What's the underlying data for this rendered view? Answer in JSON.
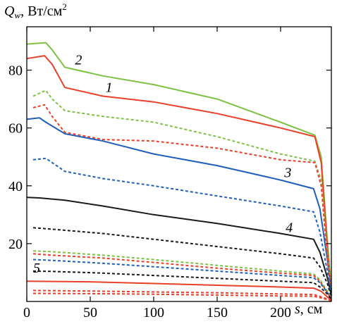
{
  "chart_data": {
    "type": "line",
    "ylabel": {
      "symbol": "Q",
      "subscript": "w",
      "unit": ", Вт/см",
      "power": "2"
    },
    "xlabel": {
      "symbol": "s",
      "unit": ", см"
    },
    "xlim": [
      0,
      240
    ],
    "ylim": [
      0,
      95
    ],
    "x_ticks": [
      0,
      50,
      100,
      150,
      200
    ],
    "y_ticks": [
      20,
      40,
      60,
      80
    ],
    "series": [
      {
        "name": "2",
        "style": "solid",
        "color": "#7dc242",
        "points": [
          [
            0,
            89
          ],
          [
            15,
            89.5
          ],
          [
            20,
            87
          ],
          [
            30,
            81
          ],
          [
            60,
            78
          ],
          [
            100,
            75
          ],
          [
            150,
            70
          ],
          [
            200,
            62
          ],
          [
            227,
            57.5
          ],
          [
            232,
            50
          ],
          [
            237,
            20
          ],
          [
            240,
            4
          ]
        ]
      },
      {
        "name": "1",
        "style": "solid",
        "color": "#e8402a",
        "points": [
          [
            0,
            84
          ],
          [
            14,
            85
          ],
          [
            20,
            82
          ],
          [
            30,
            74
          ],
          [
            60,
            71
          ],
          [
            100,
            69
          ],
          [
            150,
            65
          ],
          [
            200,
            60
          ],
          [
            227,
            57
          ],
          [
            232,
            48
          ],
          [
            237,
            18
          ],
          [
            240,
            3
          ]
        ]
      },
      {
        "name": "3",
        "style": "solid",
        "color": "#1f5fb9",
        "points": [
          [
            0,
            63
          ],
          [
            10,
            63.5
          ],
          [
            15,
            62
          ],
          [
            30,
            58
          ],
          [
            60,
            55.5
          ],
          [
            100,
            51
          ],
          [
            150,
            47
          ],
          [
            200,
            42
          ],
          [
            226,
            39
          ],
          [
            231,
            32
          ],
          [
            237,
            14
          ],
          [
            240,
            3
          ]
        ]
      },
      {
        "name": "4",
        "style": "solid",
        "color": "#1a1a1a",
        "points": [
          [
            0,
            36
          ],
          [
            10,
            35.8
          ],
          [
            30,
            35
          ],
          [
            60,
            33
          ],
          [
            100,
            30
          ],
          [
            150,
            27
          ],
          [
            200,
            23.5
          ],
          [
            226,
            21.5
          ],
          [
            231,
            17
          ],
          [
            237,
            8
          ],
          [
            240,
            2
          ]
        ]
      },
      {
        "name": "5",
        "style": "solid",
        "color": "#e8402a",
        "points": [
          [
            0,
            7
          ],
          [
            50,
            6.8
          ],
          [
            100,
            6.2
          ],
          [
            150,
            5.6
          ],
          [
            200,
            5
          ],
          [
            226,
            4.6
          ],
          [
            232,
            3.5
          ],
          [
            237,
            1.5
          ],
          [
            240,
            0.5
          ]
        ]
      },
      {
        "name": "",
        "style": "dashed",
        "color": "#7dc242",
        "points": [
          [
            5,
            71
          ],
          [
            15,
            73
          ],
          [
            20,
            70
          ],
          [
            30,
            66
          ],
          [
            60,
            64
          ],
          [
            100,
            62
          ],
          [
            150,
            57
          ],
          [
            200,
            51
          ],
          [
            227,
            48.5
          ],
          [
            232,
            42
          ],
          [
            237,
            16
          ],
          [
            240,
            4
          ]
        ]
      },
      {
        "name": "",
        "style": "dashed",
        "color": "#e8402a",
        "points": [
          [
            5,
            67
          ],
          [
            14,
            68
          ],
          [
            20,
            64
          ],
          [
            30,
            58.5
          ],
          [
            60,
            56
          ],
          [
            100,
            55.5
          ],
          [
            150,
            53
          ],
          [
            200,
            49
          ],
          [
            227,
            48
          ],
          [
            232,
            40
          ],
          [
            237,
            14
          ],
          [
            240,
            3
          ]
        ]
      },
      {
        "name": "",
        "style": "dashed",
        "color": "#1f5fb9",
        "points": [
          [
            5,
            49
          ],
          [
            15,
            49.5
          ],
          [
            20,
            48
          ],
          [
            30,
            45
          ],
          [
            60,
            42.5
          ],
          [
            100,
            40
          ],
          [
            150,
            36.5
          ],
          [
            200,
            33
          ],
          [
            226,
            31
          ],
          [
            231,
            24
          ],
          [
            237,
            10
          ],
          [
            240,
            2
          ]
        ]
      },
      {
        "name": "",
        "style": "dashed",
        "color": "#1a1a1a",
        "points": [
          [
            5,
            25.5
          ],
          [
            20,
            25
          ],
          [
            60,
            23.5
          ],
          [
            100,
            21.5
          ],
          [
            150,
            19
          ],
          [
            200,
            16.5
          ],
          [
            226,
            15
          ],
          [
            231,
            12
          ],
          [
            237,
            6
          ],
          [
            240,
            1.5
          ]
        ]
      },
      {
        "name": "",
        "style": "dashed",
        "color": "#7dc242",
        "points": [
          [
            5,
            17.5
          ],
          [
            20,
            17.2
          ],
          [
            60,
            16
          ],
          [
            100,
            14.5
          ],
          [
            150,
            12.5
          ],
          [
            200,
            10.5
          ],
          [
            226,
            9.5
          ],
          [
            231,
            7.5
          ],
          [
            237,
            3.5
          ],
          [
            240,
            1
          ]
        ]
      },
      {
        "name": "",
        "style": "dashed",
        "color": "#e8402a",
        "points": [
          [
            5,
            16.5
          ],
          [
            20,
            16
          ],
          [
            60,
            15
          ],
          [
            100,
            13.5
          ],
          [
            150,
            11.5
          ],
          [
            200,
            9.8
          ],
          [
            226,
            9
          ],
          [
            231,
            7
          ],
          [
            237,
            3
          ],
          [
            240,
            1
          ]
        ]
      },
      {
        "name": "",
        "style": "dashed",
        "color": "#1f5fb9",
        "points": [
          [
            5,
            14.5
          ],
          [
            20,
            14.2
          ],
          [
            60,
            13.2
          ],
          [
            100,
            12
          ],
          [
            150,
            10.5
          ],
          [
            200,
            9
          ],
          [
            226,
            8.2
          ],
          [
            231,
            6.5
          ],
          [
            237,
            3
          ],
          [
            240,
            0.8
          ]
        ]
      },
      {
        "name": "",
        "style": "dashed",
        "color": "#1a1a1a",
        "points": [
          [
            5,
            10.5
          ],
          [
            20,
            10.4
          ],
          [
            60,
            9.8
          ],
          [
            100,
            9
          ],
          [
            150,
            8
          ],
          [
            200,
            7
          ],
          [
            226,
            6.5
          ],
          [
            231,
            5
          ],
          [
            237,
            2.5
          ],
          [
            240,
            0.7
          ]
        ]
      },
      {
        "name": "",
        "style": "dashed",
        "color": "#e8402a",
        "points": [
          [
            5,
            3.8
          ],
          [
            50,
            3.6
          ],
          [
            100,
            3.3
          ],
          [
            150,
            3
          ],
          [
            200,
            2.6
          ],
          [
            226,
            2.4
          ],
          [
            232,
            1.6
          ],
          [
            237,
            0.8
          ],
          [
            240,
            0.3
          ]
        ]
      },
      {
        "name": "",
        "style": "dashed",
        "color": "#e8402a",
        "points": [
          [
            5,
            2.8
          ],
          [
            50,
            2.7
          ],
          [
            100,
            2.5
          ],
          [
            150,
            2.2
          ],
          [
            200,
            1.9
          ],
          [
            226,
            1.8
          ],
          [
            232,
            1.2
          ],
          [
            237,
            0.6
          ],
          [
            240,
            0.2
          ]
        ]
      }
    ],
    "curve_labels": [
      {
        "text": "2",
        "x": 38,
        "y": 82
      },
      {
        "text": "1",
        "x": 62,
        "y": 72.5
      },
      {
        "text": "3",
        "x": 203,
        "y": 43
      },
      {
        "text": "4",
        "x": 204,
        "y": 24
      },
      {
        "text": "5",
        "x": 5,
        "y": 10
      }
    ]
  }
}
